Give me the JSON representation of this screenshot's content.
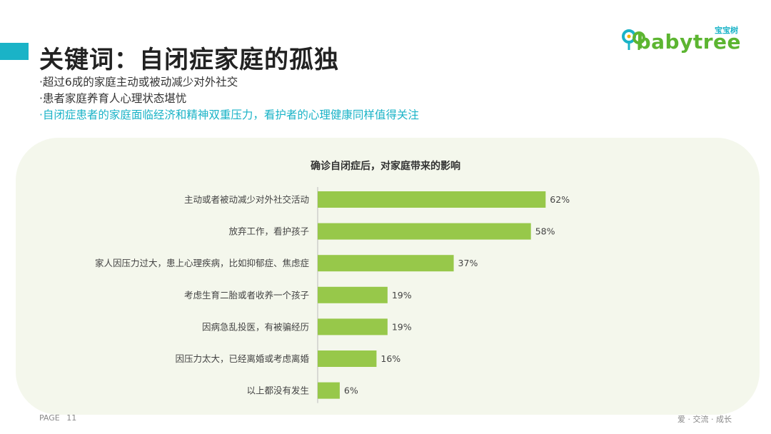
{
  "header": {
    "title": "关键词：自闭症家庭的孤独",
    "bullets": [
      "·超过6成的家庭主动或被动减少对外社交",
      "·患者家庭养育人心理状态堪忧",
      "·自闭症患者的家庭面临经济和精神双重压力，看护者的心理健康同样值得关注"
    ],
    "accent_color": "#1ab3c7"
  },
  "logo": {
    "brand_cn": "宝宝树",
    "brand_en": "babytree",
    "brand_color": "#5cb531"
  },
  "chart_data": {
    "type": "bar",
    "orientation": "horizontal",
    "title": "确诊自闭症后，对家庭带来的影响",
    "categories": [
      "主动或者被动减少对外社交活动",
      "放弃工作，看护孩子",
      "家人因压力过大，患上心理疾病，比如抑郁症、焦虑症",
      "考虑生育二胎或者收养一个孩子",
      "因病急乱投医，有被骗经历",
      "因压力太大，已经离婚或考虑离婚",
      "以上都没有发生"
    ],
    "values": [
      62,
      58,
      37,
      19,
      19,
      16,
      6
    ],
    "data_labels": [
      "62%",
      "58%",
      "37%",
      "19%",
      "19%",
      "16%",
      "6%"
    ],
    "unit": "%",
    "xlim": [
      0,
      100
    ],
    "bar_color": "#97c84a",
    "grid": false,
    "legend": "none"
  },
  "footer": {
    "page_label": "PAGE",
    "page_number": "11",
    "slogan": "爱 · 交流 · 成长"
  }
}
